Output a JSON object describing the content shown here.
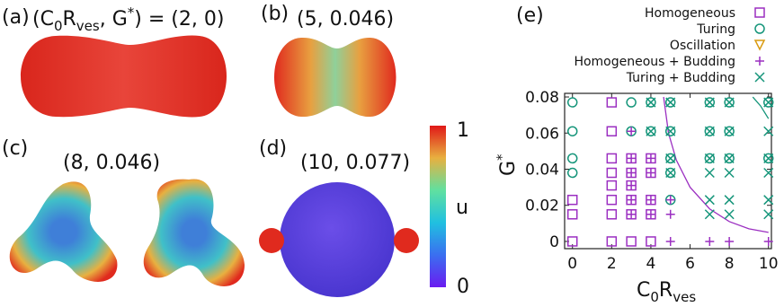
{
  "panels": [
    {
      "label": "(a)",
      "caption": [
        "(C",
        "0",
        "R",
        "ves",
        ", G",
        "*",
        ") = (2, 0)"
      ]
    },
    {
      "label": "(b)",
      "caption": "(5, 0.046)"
    },
    {
      "label": "(c)",
      "caption": "(8, 0.046)"
    },
    {
      "label": "(d)",
      "caption": "(10, 0.077)"
    }
  ],
  "colorbar": {
    "max": "1",
    "label": "u",
    "min": "0"
  },
  "chart_data": {
    "type": "scatter",
    "label": "(e)",
    "xlabel": [
      "C",
      "0",
      "R",
      "ves"
    ],
    "ylabel": [
      "G",
      "*"
    ],
    "xlim": [
      -0.4,
      10.15
    ],
    "ylim": [
      -0.004,
      0.082
    ],
    "xticks": [
      0,
      2,
      4,
      6,
      8,
      10
    ],
    "yticks": [
      0,
      0.02,
      0.04,
      0.06,
      0.08
    ],
    "series": [
      {
        "name": "Homogeneous",
        "color": "#9b2fc1",
        "marker": "square",
        "x": [
          0,
          0,
          0,
          2,
          2,
          2,
          2,
          2,
          2,
          2,
          2,
          3,
          3,
          3,
          3,
          3,
          3,
          4,
          4,
          4,
          4,
          4
        ],
        "y": [
          0,
          0.015,
          0.023,
          0,
          0.015,
          0.023,
          0.031,
          0.038,
          0.046,
          0.061,
          0.077,
          0,
          0.015,
          0.023,
          0.031,
          0.038,
          0.046,
          0,
          0.015,
          0.023,
          0.038,
          0.046
        ]
      },
      {
        "name": "Turing",
        "color": "#15957a",
        "marker": "circle",
        "x": [
          0,
          0,
          0,
          0,
          3,
          3,
          4,
          4,
          5,
          5,
          5,
          5,
          5,
          7,
          7,
          7,
          8,
          8,
          8,
          10,
          10
        ],
        "y": [
          0.038,
          0.046,
          0.061,
          0.077,
          0.061,
          0.077,
          0.061,
          0.077,
          0.023,
          0.038,
          0.046,
          0.061,
          0.077,
          0.046,
          0.061,
          0.077,
          0.046,
          0.061,
          0.077,
          0.046,
          0.077
        ]
      },
      {
        "name": "Oscillation",
        "color": "#d99a10",
        "marker": "triangle",
        "x": [],
        "y": []
      },
      {
        "name": "Homogeneous + Budding",
        "color": "#9b2fc1",
        "marker": "plus",
        "x": [
          3,
          3,
          3,
          3,
          3,
          3,
          4,
          4,
          4,
          4,
          5,
          5,
          5,
          7,
          8,
          10
        ],
        "y": [
          0.015,
          0.023,
          0.031,
          0.038,
          0.046,
          0.061,
          0.015,
          0.023,
          0.038,
          0.046,
          0,
          0.015,
          0.023,
          0,
          0,
          0
        ]
      },
      {
        "name": "Turing + Budding",
        "color": "#15957a",
        "marker": "cross",
        "x": [
          4,
          4,
          5,
          5,
          5,
          5,
          7,
          7,
          7,
          7,
          7,
          7,
          8,
          8,
          8,
          8,
          8,
          8,
          10,
          10,
          10,
          10,
          10,
          10
        ],
        "y": [
          0.061,
          0.077,
          0.038,
          0.046,
          0.061,
          0.077,
          0.015,
          0.023,
          0.038,
          0.046,
          0.061,
          0.077,
          0.015,
          0.023,
          0.038,
          0.046,
          0.061,
          0.077,
          0.015,
          0.023,
          0.038,
          0.046,
          0.061,
          0.077
        ]
      }
    ],
    "curves": [
      {
        "color": "#9b2fc1",
        "x": [
          4.65,
          4.9,
          5.3,
          6,
          7,
          8,
          9,
          10
        ],
        "y": [
          0.08,
          0.06,
          0.045,
          0.03,
          0.018,
          0.011,
          0.007,
          0.005
        ]
      },
      {
        "color": "#15957a",
        "x": [
          9.2,
          9.6,
          10
        ],
        "y": [
          0.08,
          0.075,
          0.068
        ]
      }
    ]
  }
}
